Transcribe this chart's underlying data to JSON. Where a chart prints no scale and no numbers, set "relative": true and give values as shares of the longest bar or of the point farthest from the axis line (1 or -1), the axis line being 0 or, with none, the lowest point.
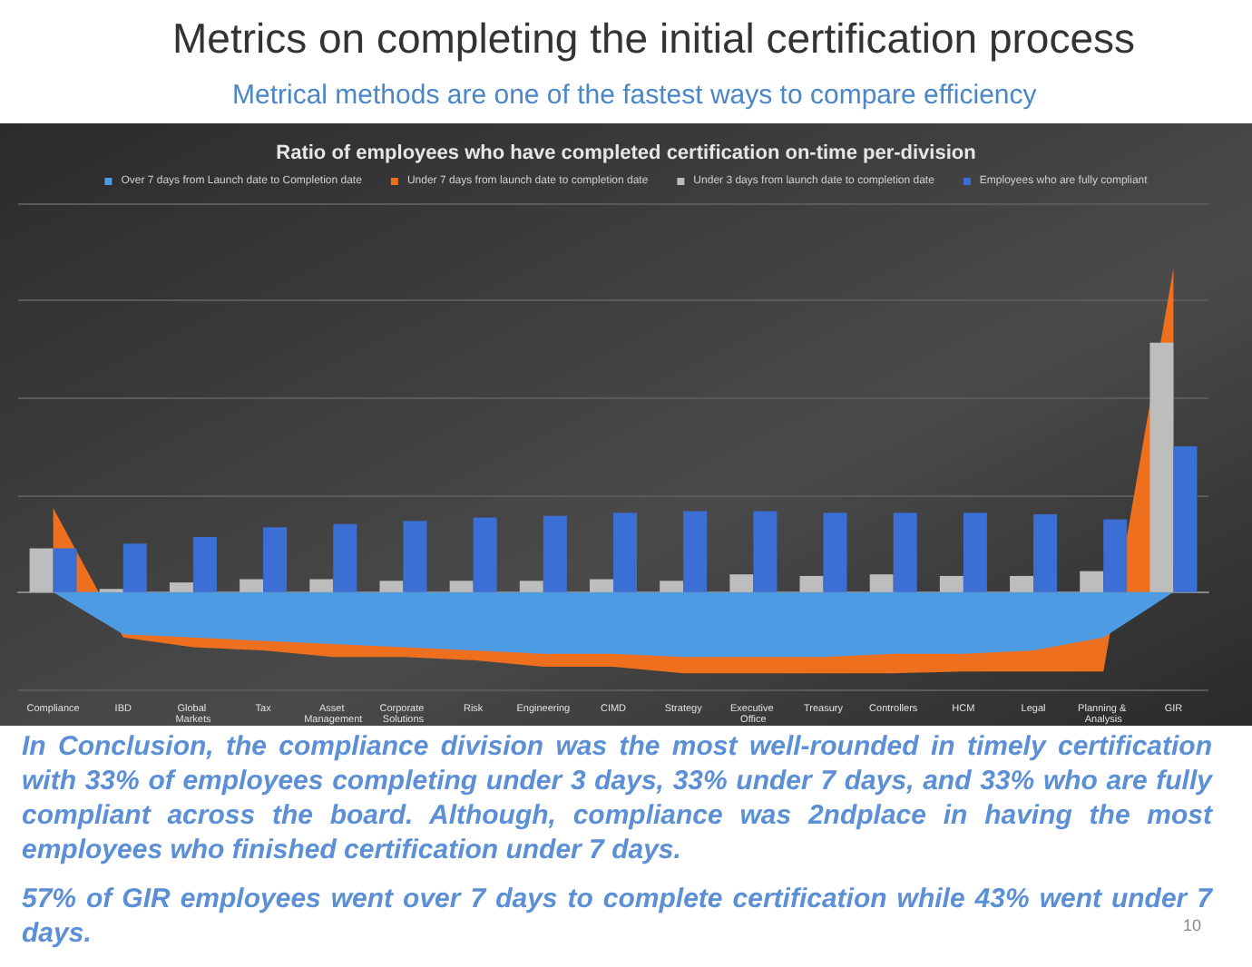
{
  "chart_data": {
    "type": "bar",
    "title": "Metrics on completing the initial certification process",
    "subtitle": "Metrical methods are one of the fastest ways to compare efficiency",
    "annotations": [
      "Ratio of employees who have completed certification on-time per-division",
      "In Conclusion, the compliance division was the most well-rounded in timely certification with 33% of employees completing under 3 days, 33% under 7 days, and 33% who are fully compliant across the board. Although, compliance was 2ndplace in having the most employees who finished certification under 7 days.",
      "57% of GIR employees went over 7 days to complete certification while 43% went under 7 days.",
      "10"
    ],
    "categories": [
      "Compliance",
      "IBD",
      "Global Markets",
      "Tax",
      "Asset Management",
      "Corporate Solutions",
      "Risk",
      "Engineering",
      "CIMD",
      "Strategy",
      "Executive Office",
      "Treasury",
      "Controllers",
      "HCM",
      "Legal",
      "Planning & Analysis",
      "GIR"
    ],
    "relative": true,
    "grid": "y",
    "legend": "top",
    "marker": "none",
    "series": [
      {
        "name": "Over 7 days from Launch date to Completion date",
        "type": "area",
        "color": "#4d9be3",
        "values": [
          0,
          -0.13,
          -0.14,
          -0.15,
          -0.16,
          -0.17,
          -0.18,
          -0.19,
          -0.19,
          -0.2,
          -0.2,
          -0.2,
          -0.19,
          -0.19,
          -0.18,
          -0.14,
          0
        ]
      },
      {
        "name": "Under 7 days from launch date to completion date",
        "type": "area",
        "color": "#ee6f1e",
        "values": [
          0.26,
          -0.14,
          -0.17,
          -0.18,
          -0.2,
          -0.2,
          -0.21,
          -0.23,
          -0.23,
          -0.25,
          -0.25,
          -0.25,
          -0.25,
          -0.245,
          -0.245,
          -0.245,
          1
        ]
      },
      {
        "name": "Under 3 days from launch date to completion date",
        "color": "#bdbdbd",
        "values": [
          0.135,
          0.01,
          0.03,
          0.04,
          0.04,
          0.035,
          0.035,
          0.035,
          0.04,
          0.035,
          0.055,
          0.05,
          0.055,
          0.05,
          0.05,
          0.065,
          0.77
        ]
      },
      {
        "name": "Employees who are fully compliant",
        "color": "#3b6fd6",
        "values": [
          0.135,
          0.15,
          0.17,
          0.2,
          0.21,
          0.22,
          0.23,
          0.235,
          0.245,
          0.25,
          0.25,
          0.245,
          0.245,
          0.245,
          0.24,
          0.225,
          0.45
        ]
      }
    ]
  }
}
